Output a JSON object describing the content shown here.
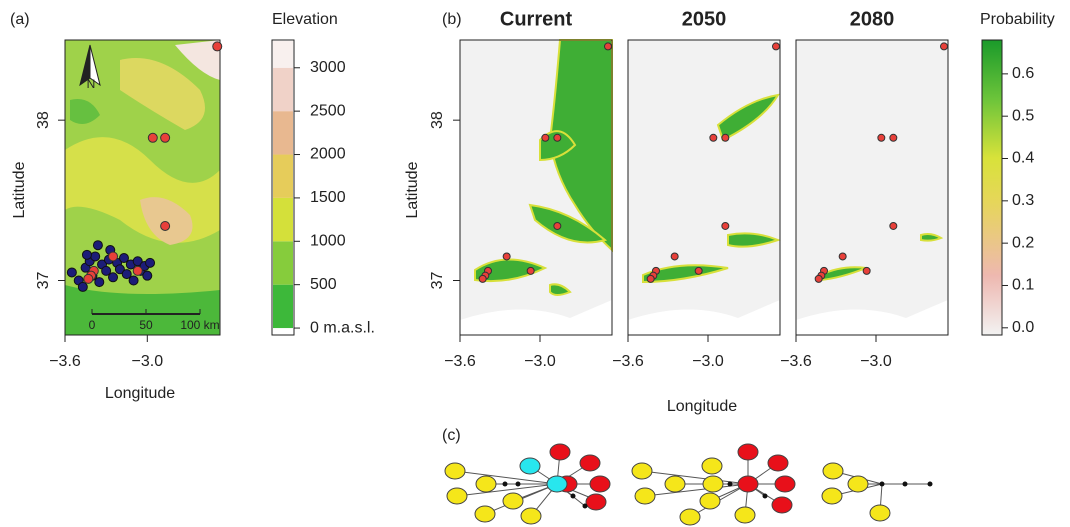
{
  "panel_a": {
    "label": "(a)",
    "xlabel": "Longitude",
    "ylabel": "Latitude",
    "xlim": [
      -3.6,
      -2.47
    ],
    "ylim": [
      36.66,
      38.5
    ],
    "xticks": [
      {
        "value": -3.6,
        "label": "−3.6"
      },
      {
        "value": -3.0,
        "label": "−3.0"
      }
    ],
    "yticks": [
      37,
      38
    ],
    "north": "N",
    "scalebar": [
      0,
      50,
      {
        "value": 100,
        "label": "100 km"
      }
    ],
    "samples": {
      "color": "#1c1c78",
      "lon": [
        -3.55,
        -3.5,
        -3.47,
        -3.45,
        -3.42,
        -3.4,
        -3.38,
        -3.36,
        -3.33,
        -3.3,
        -3.28,
        -3.25,
        -3.22,
        -3.2,
        -3.17,
        -3.15,
        -3.12,
        -3.1,
        -3.07,
        -3.05,
        -3.02,
        -3.0,
        -2.98,
        -3.35,
        -3.44,
        -3.27
      ],
      "lat": [
        37.05,
        37.0,
        36.96,
        37.08,
        37.12,
        37.03,
        37.15,
        37.22,
        37.1,
        37.06,
        37.13,
        37.02,
        37.11,
        37.07,
        37.14,
        37.04,
        37.1,
        37.0,
        37.12,
        37.06,
        37.09,
        37.03,
        37.11,
        36.99,
        37.16,
        37.19
      ]
    }
  },
  "sites": {
    "color": "#e8403a",
    "lon": [
      -2.49,
      -2.96,
      -2.87,
      -2.87,
      -3.25,
      -3.39,
      -3.41,
      -3.43,
      -3.07
    ],
    "lat": [
      38.46,
      37.89,
      37.89,
      37.34,
      37.15,
      37.06,
      37.03,
      37.01,
      37.06
    ]
  },
  "elevation_legend": {
    "title": "Elevation",
    "ylim": [
      -80,
      3320
    ],
    "yticks": [
      {
        "value": 0,
        "label": "0 m.a.s.l."
      },
      500,
      1000,
      1500,
      2000,
      2500,
      3000
    ]
  },
  "panel_b": {
    "label": "(b)",
    "xlabel": "Longitude",
    "ylabel": "Latitude",
    "xlim": [
      -3.6,
      -2.46
    ],
    "ylim": [
      36.66,
      38.5
    ],
    "xticks": [
      {
        "value": -3.6,
        "label": "−3.6"
      },
      {
        "value": -3.0,
        "label": "−3.0"
      }
    ],
    "yticks": [
      37,
      38
    ],
    "maps": [
      {
        "title": "Current"
      },
      {
        "title": "2050"
      },
      {
        "title": "2080"
      }
    ]
  },
  "probability_legend": {
    "title": "Probability",
    "ylim": [
      -0.017,
      0.68
    ],
    "yticks": [
      {
        "value": 0,
        "label": "0.0"
      },
      0.1,
      0.2,
      0.3,
      0.4,
      0.5,
      0.6
    ]
  },
  "panel_c": {
    "label": "(c)"
  }
}
